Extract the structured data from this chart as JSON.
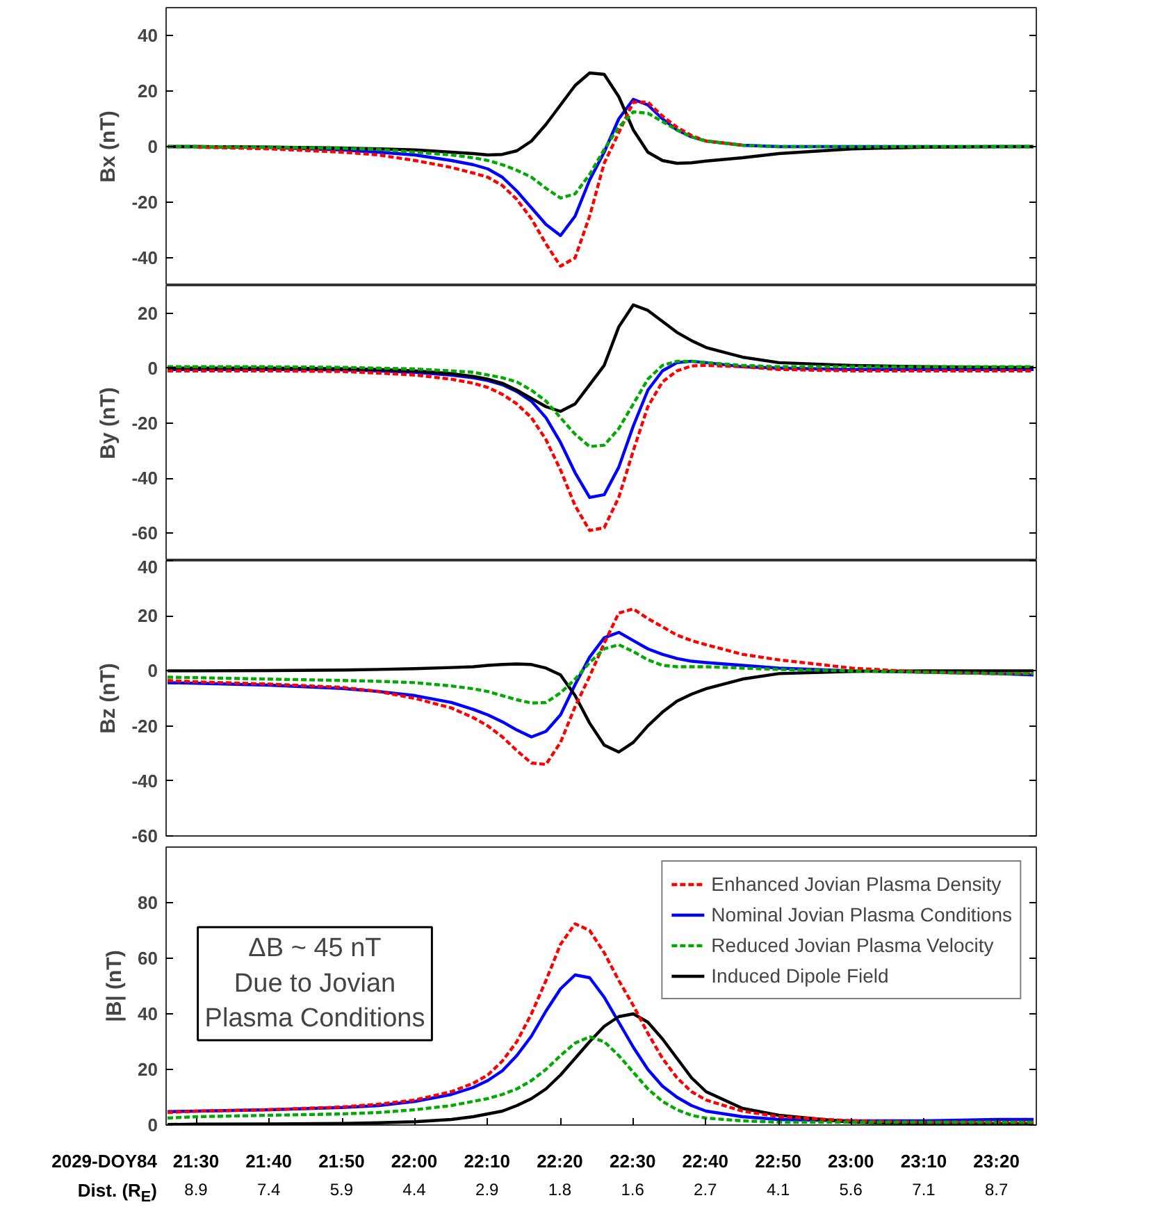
{
  "chart_data": [
    {
      "type": "line",
      "ylabel": "Bx (nT)",
      "tick_labels": "y",
      "xlim": [
        21.43,
        23.423
      ],
      "ylim": [
        -50,
        50
      ],
      "yticks": [
        -40,
        -20,
        0,
        20,
        40
      ],
      "x": [
        21.4333,
        21.5,
        21.6667,
        21.8333,
        21.9167,
        22.0,
        22.0833,
        22.1333,
        22.1667,
        22.2,
        22.2333,
        22.2667,
        22.3,
        22.3333,
        22.3667,
        22.4,
        22.4333,
        22.4667,
        22.5,
        22.5333,
        22.5667,
        22.6,
        22.6333,
        22.6667,
        22.75,
        22.8333,
        23.0,
        23.1667,
        23.3333,
        23.4167
      ],
      "series": [
        {
          "color": "#ff0000",
          "line_style": "dashed",
          "values": [
            null,
            -0.2,
            -0.8,
            -2,
            -3,
            -5,
            -7.5,
            -9.5,
            -11,
            -14,
            -19,
            -26,
            -35,
            -43,
            -40,
            -25,
            -6,
            5,
            16,
            16,
            11,
            7,
            4,
            2,
            0.5,
            null,
            null,
            null,
            null,
            null
          ]
        },
        {
          "color": "#0000ff",
          "line_style": "solid",
          "values": [
            0,
            0,
            -0.3,
            -1.2,
            -2,
            -3,
            -5,
            -6.5,
            -8,
            -11,
            -16,
            -22,
            -28,
            -32,
            -25,
            -12,
            -2,
            10,
            17,
            15,
            10,
            6,
            3.5,
            2,
            0.5,
            0,
            0,
            0,
            0,
            0
          ]
        },
        {
          "color": "#00aa00",
          "line_style": "dashed",
          "values": [
            0,
            0,
            -0.2,
            -0.6,
            -1,
            -2,
            -3,
            -4,
            -5,
            -6.5,
            -8.5,
            -11,
            -15,
            -18.5,
            -17,
            -10,
            -1,
            7,
            12.5,
            12,
            9,
            6,
            3.5,
            2,
            0.5,
            0,
            0,
            0,
            0,
            0
          ]
        },
        {
          "color": "#000000",
          "line_style": "solid",
          "values": [
            0,
            0,
            -0.2,
            -0.5,
            -0.8,
            -1.2,
            -2,
            -2.5,
            -3,
            -2.8,
            -1.5,
            2,
            8,
            15,
            22,
            26.5,
            26,
            18,
            6,
            -2,
            -5,
            -6,
            -5.8,
            -5.2,
            -4,
            -2.5,
            -0.8,
            -0.2,
            0,
            0
          ]
        }
      ]
    },
    {
      "type": "line",
      "ylabel": "By (nT)",
      "tick_labels": "y",
      "xlim": [
        21.43,
        23.423
      ],
      "ylim": [
        -70,
        30
      ],
      "yticks": [
        -60,
        -40,
        -20,
        0,
        20
      ],
      "x": [
        21.4333,
        21.5,
        21.6667,
        21.8333,
        21.9167,
        22.0,
        22.0833,
        22.1333,
        22.1667,
        22.2,
        22.2333,
        22.2667,
        22.3,
        22.3333,
        22.3667,
        22.4,
        22.4333,
        22.4667,
        22.5,
        22.5333,
        22.5667,
        22.6,
        22.6333,
        22.6667,
        22.75,
        22.8333,
        23.0,
        23.1667,
        23.3333,
        23.4167
      ],
      "series": [
        {
          "color": "#ff0000",
          "line_style": "dashed",
          "values": [
            -1,
            -1,
            -1,
            -1.2,
            -1.8,
            -2.5,
            -4,
            -5.5,
            -7,
            -9.5,
            -13,
            -18,
            -26,
            -37,
            -50,
            -59,
            -58,
            -47,
            -30,
            -14,
            -5,
            -1,
            0.8,
            1,
            0.5,
            -0.5,
            -1,
            -1,
            -1,
            -1
          ]
        },
        {
          "color": "#0000ff",
          "line_style": "solid",
          "values": [
            -0.5,
            -0.5,
            -0.5,
            -0.6,
            -1,
            -1.5,
            -2.5,
            -3.5,
            -4.5,
            -6,
            -8.5,
            -12,
            -18,
            -27,
            -38,
            -47,
            -46,
            -36,
            -21,
            -8,
            -1,
            2,
            2.5,
            2,
            0.5,
            0,
            -0.5,
            -0.5,
            -0.5,
            -0.5
          ]
        },
        {
          "color": "#00aa00",
          "line_style": "dashed",
          "values": [
            0.5,
            0.5,
            0.5,
            0.3,
            0,
            -0.3,
            -1,
            -1.5,
            -2.5,
            -3.5,
            -5,
            -8,
            -12,
            -18,
            -24,
            -28.5,
            -28,
            -22,
            -13,
            -4,
            1,
            2.5,
            2.5,
            2,
            1,
            0.5,
            0.5,
            0.5,
            0.5,
            0.5
          ]
        },
        {
          "color": "#000000",
          "line_style": "solid",
          "values": [
            0,
            0,
            0,
            -0.2,
            -0.5,
            -1,
            -2,
            -3,
            -4,
            -5.5,
            -8,
            -11,
            -14,
            -15.7,
            -13,
            -6,
            1,
            15,
            23,
            21,
            17,
            13,
            10,
            7.5,
            4,
            2,
            1,
            0.5,
            0.3,
            0.3
          ]
        }
      ]
    },
    {
      "type": "line",
      "ylabel": "Bz (nT)",
      "tick_labels": "y",
      "xlim": [
        21.43,
        23.423
      ],
      "ylim": [
        -60,
        40
      ],
      "yticks": [
        -60,
        -40,
        -20,
        0,
        20,
        40
      ],
      "x": [
        21.4333,
        21.5,
        21.6667,
        21.8333,
        21.9167,
        22.0,
        22.0833,
        22.1333,
        22.1667,
        22.2,
        22.2333,
        22.2667,
        22.3,
        22.3333,
        22.3667,
        22.4,
        22.4333,
        22.4667,
        22.5,
        22.5333,
        22.5667,
        22.6,
        22.6333,
        22.6667,
        22.75,
        22.8333,
        23.0,
        23.1667,
        23.3333,
        23.4167
      ],
      "series": [
        {
          "color": "#ff0000",
          "line_style": "dashed",
          "values": [
            -3.5,
            -4,
            -4.8,
            -6,
            -7.5,
            -10,
            -13.5,
            -17,
            -20,
            -24,
            -29,
            -33.5,
            -34,
            -26,
            -13,
            -2,
            10,
            21,
            22.5,
            19,
            16,
            13,
            11,
            9.5,
            6,
            4,
            1,
            -0.5,
            -1,
            -1
          ]
        },
        {
          "color": "#0000ff",
          "line_style": "solid",
          "values": [
            -4.3,
            -4.5,
            -5.2,
            -6.4,
            -7.5,
            -9,
            -11.5,
            -14,
            -16,
            -18.5,
            -21.5,
            -24,
            -22,
            -16,
            -5,
            5,
            12,
            14,
            11,
            8,
            6,
            4.5,
            3.5,
            3,
            2,
            1,
            0,
            -0.5,
            -1,
            -1.5
          ]
        },
        {
          "color": "#00aa00",
          "line_style": "dashed",
          "values": [
            -2.3,
            -2.5,
            -3,
            -3.5,
            -3.8,
            -4.3,
            -5.5,
            -6.5,
            -7.5,
            -9,
            -10.5,
            -11.7,
            -11.5,
            -8,
            -3,
            3,
            8,
            9.5,
            7,
            4,
            2,
            1.5,
            1.5,
            1.5,
            1,
            0.5,
            0,
            -0.5,
            -1,
            -1
          ]
        },
        {
          "color": "#000000",
          "line_style": "solid",
          "values": [
            0,
            0,
            0.1,
            0.3,
            0.5,
            0.8,
            1.2,
            1.5,
            2,
            2.3,
            2.5,
            2.3,
            1,
            -1.5,
            -9,
            -19,
            -27,
            -29.5,
            -26,
            -20,
            -15,
            -11,
            -8.5,
            -6.5,
            -3,
            -1,
            -0.2,
            0,
            0,
            0
          ]
        }
      ]
    },
    {
      "type": "line",
      "ylabel": "|B| (nT)",
      "xlabel": "2029-DOY84",
      "x2label": "Dist. (R$_{E}$)",
      "xlim": [
        21.43,
        23.423
      ],
      "ylim": [
        0,
        100
      ],
      "yticks": [
        0,
        20,
        40,
        60,
        80
      ],
      "xticks": [
        {
          "value": 21.5,
          "label": "21:30"
        },
        {
          "value": 21.6667,
          "label": "21:40"
        },
        {
          "value": 21.8333,
          "label": "21:50"
        },
        {
          "value": 22.0,
          "label": "22:00"
        },
        {
          "value": 22.1667,
          "label": "22:10"
        },
        {
          "value": 22.3333,
          "label": "22:20"
        },
        {
          "value": 22.5,
          "label": "22:30"
        },
        {
          "value": 22.6667,
          "label": "22:40"
        },
        {
          "value": 22.8333,
          "label": "22:50"
        },
        {
          "value": 23.0,
          "label": "23:00"
        },
        {
          "value": 23.1667,
          "label": "23:10"
        },
        {
          "value": 23.3333,
          "label": "23:20"
        }
      ],
      "legend": "top right",
      "annotations": [
        "ΔB ~ 45 nT\nDue to Jovian\nPlasma Conditions",
        "8.9",
        "7.4",
        "5.9",
        "4.4",
        "2.9",
        "1.8",
        "1.6",
        "2.7",
        "4.1",
        "5.6",
        "7.1",
        "8.7"
      ],
      "x": [
        21.4333,
        21.5,
        21.6667,
        21.8333,
        21.9167,
        22.0,
        22.0833,
        22.1333,
        22.1667,
        22.2,
        22.2333,
        22.2667,
        22.3,
        22.3333,
        22.3667,
        22.4,
        22.4333,
        22.4667,
        22.5,
        22.5333,
        22.5667,
        22.6,
        22.6333,
        22.6667,
        22.75,
        22.8333,
        23.0,
        23.1667,
        23.3333,
        23.4167
      ],
      "series": [
        {
          "name": "Enhanced Jovian Plasma Density",
          "color": "#ff0000",
          "line_style": "dashed",
          "values": [
            4.5,
            5,
            5.5,
            6.5,
            7.5,
            9,
            12,
            15,
            18,
            23,
            30,
            40,
            52,
            65,
            72.4,
            70,
            62,
            52,
            43,
            33,
            24,
            17,
            12,
            9,
            5,
            3,
            1.5,
            1,
            1,
            1
          ]
        },
        {
          "name": "Nominal Jovian Plasma Conditions",
          "color": "#0000ff",
          "line_style": "solid",
          "values": [
            4.8,
            5,
            5.5,
            6.3,
            7,
            8.5,
            11,
            13.5,
            16,
            19.5,
            25,
            32,
            41,
            49,
            54,
            53,
            46,
            37,
            28,
            20,
            14,
            10,
            7,
            5,
            3,
            2,
            1.5,
            1.5,
            2,
            2
          ]
        },
        {
          "name": "Reduced Jovian Plasma Velocity",
          "color": "#00aa00",
          "line_style": "dashed",
          "values": [
            2.5,
            3,
            3.5,
            4,
            4.5,
            5.5,
            7,
            8.5,
            9.5,
            11,
            13,
            16,
            20,
            25,
            29.5,
            31.7,
            30,
            25,
            19,
            13,
            8.5,
            5.5,
            3.5,
            2.5,
            1.5,
            1,
            1,
            1,
            1,
            1
          ]
        },
        {
          "name": "Induced Dipole Field",
          "color": "#000000",
          "line_style": "solid",
          "values": [
            0.2,
            0.3,
            0.4,
            0.6,
            0.8,
            1.2,
            2,
            3,
            4,
            5,
            7,
            9.5,
            13,
            18,
            24,
            30,
            35.5,
            39,
            40,
            37,
            31,
            24,
            17,
            12,
            6,
            3.5,
            1,
            0.5,
            0.5,
            0.5
          ]
        }
      ]
    }
  ]
}
